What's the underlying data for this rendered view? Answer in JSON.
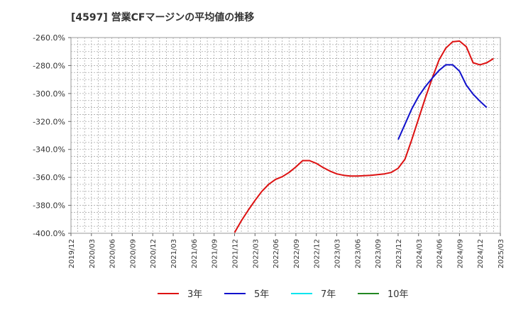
{
  "chart_data": {
    "type": "line",
    "title": "[4597]  営業CFマージンの平均値の推移",
    "xlabel": "",
    "ylabel": "",
    "ylim": [
      -400,
      -260
    ],
    "y_ticks": [
      -260,
      -280,
      -300,
      -320,
      -340,
      -360,
      -380,
      -400
    ],
    "y_tick_labels": [
      "-260.0%",
      "-280.0%",
      "-300.0%",
      "-320.0%",
      "-340.0%",
      "-360.0%",
      "-380.0%",
      "-400.0%"
    ],
    "x_tick_labels": [
      "2019/12",
      "2020/03",
      "2020/06",
      "2020/09",
      "2020/12",
      "2021/03",
      "2021/06",
      "2021/09",
      "2021/12",
      "2022/03",
      "2022/06",
      "2022/09",
      "2022/12",
      "2023/03",
      "2023/06",
      "2023/09",
      "2023/12",
      "2024/03",
      "2024/06",
      "2024/09",
      "2024/12",
      "2025/03"
    ],
    "grid": true,
    "legend_position": "bottom",
    "series": [
      {
        "name": "3年",
        "color": "#dd1111",
        "start_index": 24,
        "values": [
          -399.5,
          -391,
          -383.5,
          -376.5,
          -370,
          -365,
          -361.5,
          -359.5,
          -356.5,
          -352.5,
          -348,
          -348,
          -350,
          -353,
          -355.5,
          -357.5,
          -358.5,
          -359,
          -359,
          -358.8,
          -358.5,
          -358,
          -357.5,
          -356.5,
          -353.5,
          -347,
          -333,
          -318,
          -303,
          -289,
          -276,
          -267.5,
          -263,
          -262.5,
          -266.5,
          -278,
          -279.5,
          -278,
          -275
        ]
      },
      {
        "name": "5年",
        "color": "#1111cc",
        "start_index": 48,
        "values": [
          -333,
          -322,
          -311,
          -302,
          -295,
          -289,
          -283.5,
          -279.5,
          -279.5,
          -284,
          -294,
          -300.5,
          -305.5,
          -310
        ]
      },
      {
        "name": "7年",
        "color": "#00e5ee",
        "start_index": 0,
        "values": []
      },
      {
        "name": "10年",
        "color": "#228822",
        "start_index": 0,
        "values": []
      }
    ]
  }
}
